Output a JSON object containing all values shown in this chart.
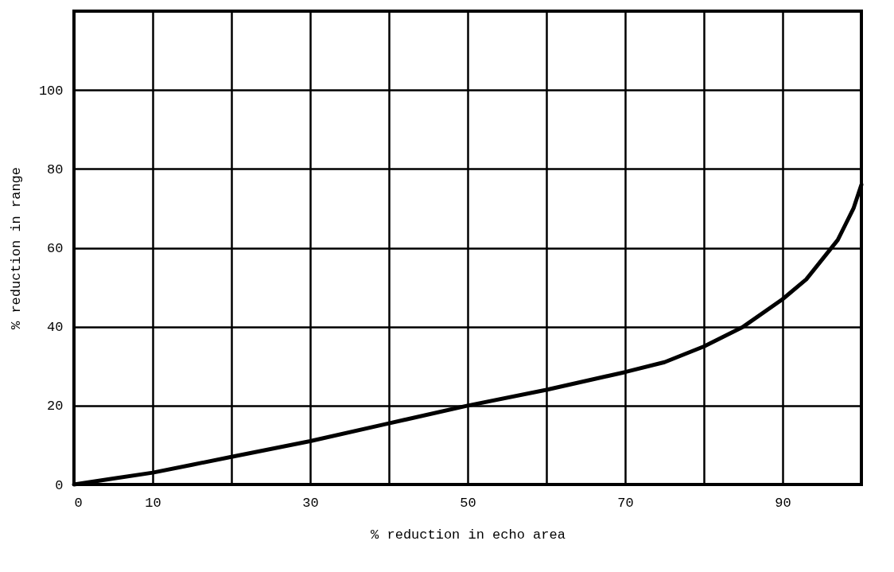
{
  "chart_data": {
    "type": "line",
    "xlabel": "% reduction in echo area",
    "ylabel": "% reduction in range",
    "x": [
      0,
      5,
      10,
      15,
      20,
      30,
      40,
      50,
      60,
      70,
      75,
      80,
      85,
      90,
      93,
      95,
      97,
      98,
      99,
      100
    ],
    "series": [
      {
        "color": "#000000",
        "values": [
          0,
          1.5,
          3,
          5,
          7,
          11,
          15.5,
          20,
          24,
          28.5,
          31,
          35,
          40,
          47,
          52,
          57,
          62,
          66,
          70,
          76
        ]
      }
    ],
    "xlim": [
      0,
      100
    ],
    "ylim": [
      0,
      120
    ],
    "xticks": [
      0,
      10,
      {
        "value": 20,
        "label": null
      },
      30,
      {
        "value": 40,
        "label": null
      },
      50,
      {
        "value": 60,
        "label": null
      },
      70,
      {
        "value": 80,
        "label": null
      },
      90,
      {
        "value": 100,
        "label": null
      }
    ],
    "yticks": [
      0,
      20,
      40,
      60,
      80,
      100,
      {
        "value": 120,
        "label": null
      }
    ],
    "grid": true,
    "marker": "none",
    "line_style": "solid"
  }
}
